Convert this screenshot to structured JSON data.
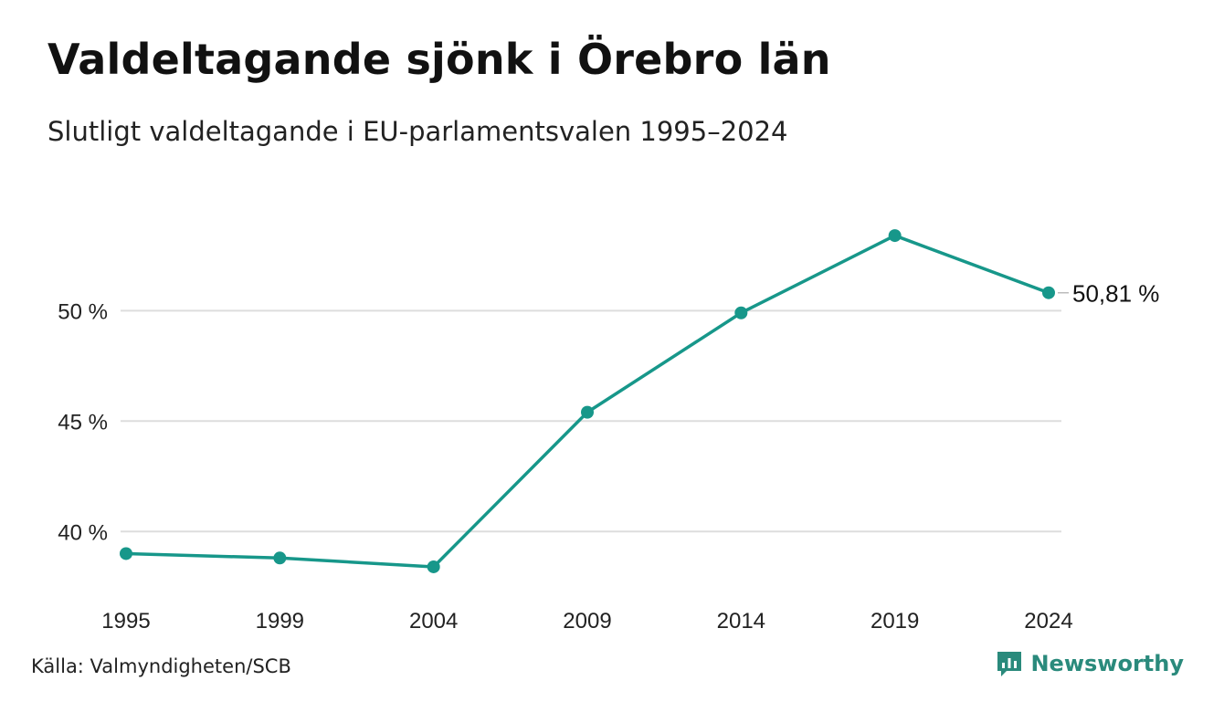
{
  "title": "Valdeltagande sjönk i Örebro län",
  "subtitle": "Slutligt valdeltagande i EU-parlamentsvalen 1995–2024",
  "source": "Källa: Valmyndigheten/SCB",
  "brand": {
    "name": "Newsworthy",
    "color": "#2a8a7c",
    "icon": "newsworthy-logo-icon"
  },
  "colors": {
    "line": "#17978a",
    "grid": "#dddddd",
    "text": "#222222"
  },
  "chart_data": {
    "type": "line",
    "x": [
      "1995",
      "1999",
      "2004",
      "2009",
      "2014",
      "2019",
      "2024"
    ],
    "series": [
      {
        "values": [
          39.0,
          38.8,
          38.4,
          45.4,
          49.9,
          53.4,
          50.81
        ]
      }
    ],
    "y_ticks": [
      40,
      45,
      50
    ],
    "y_tick_labels": [
      "40 %",
      "45 %",
      "50 %"
    ],
    "ylim": [
      37.2,
      55.8
    ],
    "end_label": "50,81 %",
    "grid": true,
    "legend": "none"
  }
}
